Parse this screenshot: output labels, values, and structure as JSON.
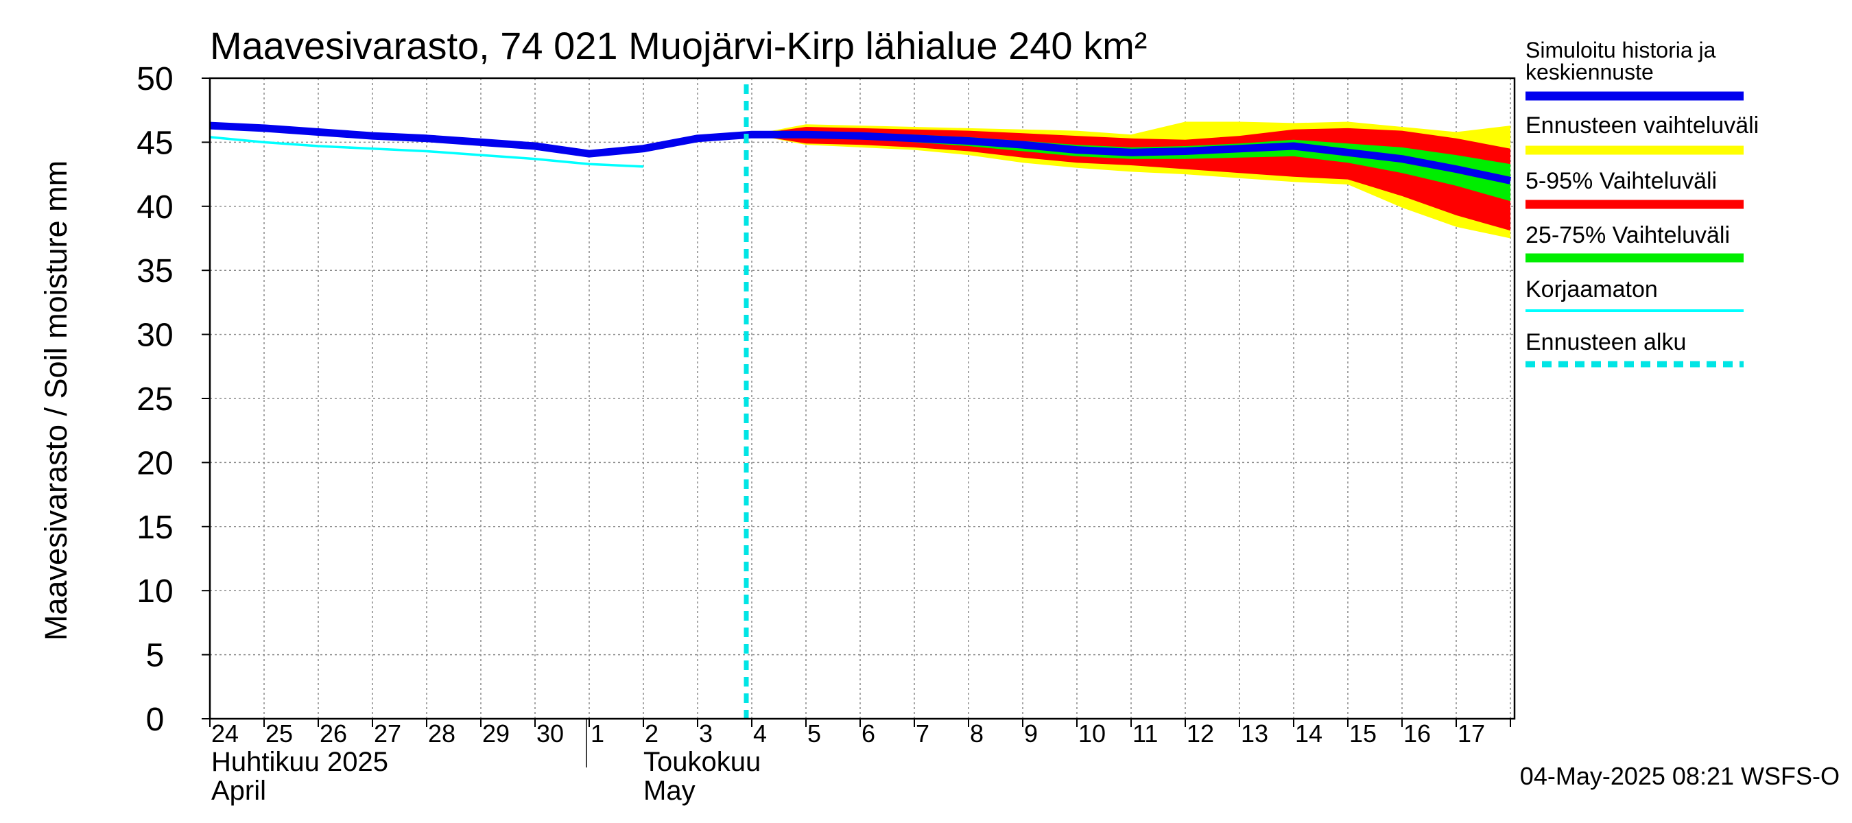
{
  "chart_data": {
    "type": "area",
    "title": "Maavesivarasto, 74 021 Muojärvi-Kirp lähialue 240 km²",
    "ylabel": "Maavesivarasto / Soil moisture   mm",
    "ylim": [
      0,
      50
    ],
    "yticks": [
      0,
      5,
      10,
      15,
      20,
      25,
      30,
      35,
      40,
      45,
      50
    ],
    "grid": true,
    "legend_position": "right",
    "x_day_labels": [
      "24",
      "25",
      "26",
      "27",
      "28",
      "29",
      "30",
      "1",
      "2",
      "3",
      "4",
      "5",
      "6",
      "7",
      "8",
      "9",
      "10",
      "11",
      "12",
      "13",
      "14",
      "15",
      "16",
      "17"
    ],
    "month_labels": [
      {
        "fi": "Huhtikuu  2025",
        "en": "April"
      },
      {
        "fi": "Toukokuu",
        "en": "May"
      }
    ],
    "forecast_start": "2025-05-04",
    "footer": "04-May-2025 08:21 WSFS-O",
    "legend": [
      {
        "label": "Simuloitu historia ja keskiennuste",
        "color": "#0000ee",
        "style": "solid-thick"
      },
      {
        "label": "Ennusteen vaihteluväli",
        "color": "#ffff00",
        "style": "solid-thick"
      },
      {
        "label": "5-95% Vaihteluväli",
        "color": "#ff0000",
        "style": "solid-thick"
      },
      {
        "label": "25-75% Vaihteluväli",
        "color": "#00ee00",
        "style": "solid-thick"
      },
      {
        "label": "Korjaamaton",
        "color": "#00ffff",
        "style": "solid-thin"
      },
      {
        "label": "Ennusteen alku",
        "color": "#00e5e5",
        "style": "dashed"
      }
    ],
    "series": [
      {
        "name": "Simuloitu historia ja keskiennuste",
        "x": [
          "2025-04-24",
          "2025-04-25",
          "2025-04-26",
          "2025-04-27",
          "2025-04-28",
          "2025-04-29",
          "2025-04-30",
          "2025-05-01",
          "2025-05-02",
          "2025-05-03",
          "2025-05-04",
          "2025-05-05",
          "2025-05-06",
          "2025-05-07",
          "2025-05-08",
          "2025-05-09",
          "2025-05-10",
          "2025-05-11",
          "2025-05-12",
          "2025-05-13",
          "2025-05-14",
          "2025-05-15",
          "2025-05-16",
          "2025-05-17",
          "2025-05-18"
        ],
        "y": [
          46.3,
          46.1,
          45.8,
          45.5,
          45.3,
          45.0,
          44.7,
          44.1,
          44.5,
          45.3,
          45.6,
          45.6,
          45.5,
          45.3,
          45.1,
          44.8,
          44.4,
          44.2,
          44.3,
          44.5,
          44.7,
          44.2,
          43.7,
          42.9,
          42.0
        ]
      },
      {
        "name": "Korjaamaton",
        "x": [
          "2025-04-24",
          "2025-04-25",
          "2025-04-26",
          "2025-04-27",
          "2025-04-28",
          "2025-04-29",
          "2025-04-30",
          "2025-05-01",
          "2025-05-02"
        ],
        "y": [
          45.4,
          45.0,
          44.7,
          44.5,
          44.3,
          44.0,
          43.7,
          43.3,
          43.1
        ]
      }
    ],
    "bands": [
      {
        "name": "Ennusteen vaihteluväli",
        "color": "#ffff00",
        "x": [
          "2025-05-04",
          "2025-05-05",
          "2025-05-06",
          "2025-05-07",
          "2025-05-08",
          "2025-05-09",
          "2025-05-10",
          "2025-05-11",
          "2025-05-12",
          "2025-05-13",
          "2025-05-14",
          "2025-05-15",
          "2025-05-16",
          "2025-05-17",
          "2025-05-18"
        ],
        "upper": [
          45.6,
          46.4,
          46.3,
          46.2,
          46.1,
          46.0,
          45.9,
          45.6,
          46.6,
          46.6,
          46.5,
          46.6,
          46.2,
          45.8,
          46.3
        ],
        "lower": [
          45.6,
          44.8,
          44.6,
          44.4,
          44.0,
          43.4,
          43.0,
          42.7,
          42.5,
          42.2,
          41.9,
          41.7,
          39.9,
          38.4,
          37.5
        ]
      },
      {
        "name": "5-95% Vaihteluväli",
        "color": "#ff0000",
        "x": [
          "2025-05-04",
          "2025-05-05",
          "2025-05-06",
          "2025-05-07",
          "2025-05-08",
          "2025-05-09",
          "2025-05-10",
          "2025-05-11",
          "2025-05-12",
          "2025-05-13",
          "2025-05-14",
          "2025-05-15",
          "2025-05-16",
          "2025-05-17",
          "2025-05-18"
        ],
        "upper": [
          45.6,
          46.2,
          46.1,
          46.0,
          45.9,
          45.7,
          45.5,
          45.3,
          45.2,
          45.5,
          46.0,
          46.1,
          45.9,
          45.3,
          44.5
        ],
        "lower": [
          45.6,
          44.9,
          44.8,
          44.6,
          44.3,
          43.8,
          43.4,
          43.2,
          42.9,
          42.6,
          42.3,
          42.1,
          40.8,
          39.3,
          38.1
        ]
      },
      {
        "name": "25-75% Vaihteluväli",
        "color": "#00ee00",
        "x": [
          "2025-05-04",
          "2025-05-05",
          "2025-05-06",
          "2025-05-07",
          "2025-05-08",
          "2025-05-09",
          "2025-05-10",
          "2025-05-11",
          "2025-05-12",
          "2025-05-13",
          "2025-05-14",
          "2025-05-15",
          "2025-05-16",
          "2025-05-17",
          "2025-05-18"
        ],
        "upper": [
          45.6,
          45.8,
          45.7,
          45.6,
          45.4,
          45.1,
          44.8,
          44.6,
          44.7,
          44.9,
          45.2,
          44.9,
          44.6,
          44.0,
          43.3
        ],
        "lower": [
          45.6,
          45.4,
          45.3,
          45.0,
          44.7,
          44.3,
          43.9,
          43.7,
          43.7,
          43.8,
          43.9,
          43.4,
          42.6,
          41.6,
          40.4
        ]
      }
    ]
  }
}
